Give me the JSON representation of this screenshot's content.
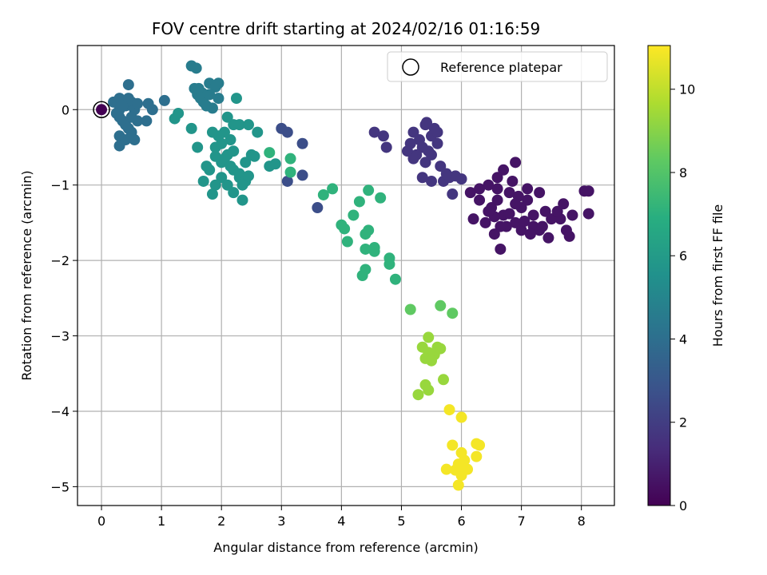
{
  "chart_data": {
    "type": "scatter",
    "title": "FOV centre drift starting at 2024/02/16 01:16:59",
    "xlabel": "Angular distance from reference (arcmin)",
    "ylabel": "Rotation from reference (arcmin)",
    "xlim": [
      -0.4,
      8.55
    ],
    "ylim": [
      -5.25,
      0.85
    ],
    "x_ticks": [
      0,
      1,
      2,
      3,
      4,
      5,
      6,
      7,
      8
    ],
    "x_tick_labels": [
      "0",
      "1",
      "2",
      "3",
      "4",
      "5",
      "6",
      "7",
      "8"
    ],
    "y_ticks": [
      0,
      -1,
      -2,
      -3,
      -4,
      -5
    ],
    "y_tick_labels": [
      "0",
      "−1",
      "−2",
      "−3",
      "−4",
      "−5"
    ],
    "grid": true,
    "colormap": "viridis",
    "colorbar": {
      "label": "Hours from first FF file",
      "range": [
        0,
        11.05
      ],
      "ticks": [
        0,
        2,
        4,
        6,
        8,
        10
      ],
      "tick_labels": [
        "0",
        "2",
        "4",
        "6",
        "8",
        "10"
      ]
    },
    "legend": {
      "position": "top-right",
      "entries": [
        {
          "label": "Reference platepar",
          "marker": "open-circle"
        }
      ]
    },
    "reference_point": {
      "x": 0,
      "y": 0
    },
    "clusters": [
      {
        "hours": 0.0,
        "points": [
          [
            0.0,
            0.0
          ]
        ]
      },
      {
        "hours": 0.6,
        "points": [
          [
            6.5,
            -1.3
          ],
          [
            6.6,
            -1.2
          ],
          [
            6.7,
            -1.4
          ],
          [
            6.8,
            -1.1
          ],
          [
            6.9,
            -1.5
          ],
          [
            7.0,
            -1.3
          ],
          [
            7.1,
            -1.2
          ],
          [
            7.2,
            -1.4
          ],
          [
            7.3,
            -1.6
          ],
          [
            7.4,
            -1.35
          ],
          [
            7.5,
            -1.45
          ],
          [
            6.4,
            -1.5
          ],
          [
            6.3,
            -1.2
          ],
          [
            6.2,
            -1.45
          ],
          [
            6.55,
            -1.65
          ],
          [
            6.65,
            -1.85
          ],
          [
            6.75,
            -1.55
          ],
          [
            7.0,
            -1.6
          ],
          [
            7.2,
            -1.55
          ],
          [
            7.45,
            -1.7
          ],
          [
            7.65,
            -1.45
          ],
          [
            7.75,
            -1.6
          ],
          [
            7.8,
            -1.68
          ],
          [
            7.6,
            -1.35
          ],
          [
            7.7,
            -1.25
          ],
          [
            7.3,
            -1.1
          ],
          [
            7.1,
            -1.05
          ],
          [
            6.95,
            -1.15
          ],
          [
            6.85,
            -0.95
          ],
          [
            6.7,
            -0.8
          ],
          [
            6.6,
            -0.9
          ],
          [
            6.45,
            -1.0
          ],
          [
            6.3,
            -1.05
          ],
          [
            6.15,
            -1.1
          ],
          [
            6.9,
            -0.7
          ],
          [
            8.05,
            -1.08
          ],
          [
            8.12,
            -1.08
          ],
          [
            8.12,
            -1.38
          ],
          [
            7.85,
            -1.4
          ],
          [
            6.55,
            -1.42
          ],
          [
            6.65,
            -1.55
          ],
          [
            6.8,
            -1.38
          ],
          [
            7.05,
            -1.48
          ],
          [
            6.6,
            -1.05
          ],
          [
            7.35,
            -1.55
          ],
          [
            7.15,
            -1.65
          ],
          [
            6.45,
            -1.35
          ],
          [
            6.9,
            -1.25
          ]
        ]
      },
      {
        "hours": 1.7,
        "points": [
          [
            5.2,
            -0.3
          ],
          [
            5.3,
            -0.4
          ],
          [
            5.4,
            -0.2
          ],
          [
            5.5,
            -0.35
          ],
          [
            5.6,
            -0.45
          ],
          [
            5.45,
            -0.55
          ],
          [
            5.35,
            -0.5
          ],
          [
            5.25,
            -0.6
          ],
          [
            5.4,
            -0.7
          ],
          [
            5.5,
            -0.6
          ],
          [
            5.6,
            -0.3
          ],
          [
            5.15,
            -0.45
          ],
          [
            5.1,
            -0.55
          ],
          [
            5.2,
            -0.65
          ],
          [
            5.55,
            -0.25
          ],
          [
            5.65,
            -0.75
          ],
          [
            5.7,
            -0.95
          ],
          [
            5.8,
            -0.9
          ],
          [
            5.9,
            -0.88
          ],
          [
            6.0,
            -0.92
          ],
          [
            5.85,
            -1.12
          ],
          [
            5.75,
            -0.85
          ],
          [
            5.5,
            -0.95
          ],
          [
            4.7,
            -0.35
          ],
          [
            4.55,
            -0.3
          ],
          [
            4.75,
            -0.5
          ],
          [
            5.42,
            -0.17
          ],
          [
            5.35,
            -0.9
          ]
        ]
      },
      {
        "hours": 2.6,
        "points": [
          [
            3.0,
            -0.25
          ],
          [
            3.1,
            -0.3
          ],
          [
            3.35,
            -0.45
          ],
          [
            3.1,
            -0.95
          ],
          [
            3.35,
            -0.87
          ],
          [
            3.6,
            -1.3
          ]
        ]
      },
      {
        "hours": 4.0,
        "points": [
          [
            0.2,
            0.1
          ],
          [
            0.3,
            0.0
          ],
          [
            0.4,
            0.05
          ],
          [
            0.5,
            0.1
          ],
          [
            0.3,
            -0.1
          ],
          [
            0.4,
            -0.2
          ],
          [
            0.5,
            -0.3
          ],
          [
            0.35,
            -0.15
          ],
          [
            0.45,
            -0.25
          ],
          [
            0.25,
            -0.05
          ],
          [
            0.55,
            0.0
          ],
          [
            0.6,
            -0.15
          ],
          [
            0.3,
            0.15
          ],
          [
            0.45,
            0.15
          ],
          [
            0.5,
            -0.1
          ],
          [
            0.3,
            -0.35
          ],
          [
            0.4,
            -0.4
          ],
          [
            0.55,
            -0.4
          ],
          [
            0.75,
            -0.15
          ],
          [
            0.85,
            0.0
          ],
          [
            0.78,
            0.08
          ],
          [
            1.05,
            0.12
          ],
          [
            0.45,
            0.33
          ],
          [
            0.3,
            -0.48
          ],
          [
            0.6,
            0.08
          ],
          [
            0.35,
            0.05
          ]
        ]
      },
      {
        "hours": 4.6,
        "points": [
          [
            1.5,
            0.58
          ],
          [
            1.58,
            0.55
          ],
          [
            1.6,
            0.2
          ],
          [
            1.65,
            0.15
          ],
          [
            1.7,
            0.1
          ],
          [
            1.8,
            0.35
          ],
          [
            1.9,
            0.3
          ],
          [
            1.95,
            0.35
          ],
          [
            1.75,
            0.05
          ],
          [
            1.85,
            0.02
          ],
          [
            1.8,
            0.2
          ],
          [
            1.95,
            0.15
          ],
          [
            1.55,
            0.28
          ],
          [
            1.68,
            0.22
          ],
          [
            1.62,
            0.28
          ]
        ]
      },
      {
        "hours": 5.7,
        "points": [
          [
            1.9,
            -0.5
          ],
          [
            2.0,
            -0.7
          ],
          [
            2.1,
            -0.6
          ],
          [
            2.2,
            -0.8
          ],
          [
            2.3,
            -0.9
          ],
          [
            2.4,
            -0.7
          ],
          [
            2.5,
            -0.6
          ],
          [
            2.0,
            -0.9
          ],
          [
            2.1,
            -1.0
          ],
          [
            2.2,
            -1.1
          ],
          [
            2.3,
            -0.85
          ],
          [
            2.4,
            -0.95
          ],
          [
            1.8,
            -0.8
          ],
          [
            1.9,
            -1.0
          ],
          [
            1.7,
            -0.95
          ],
          [
            1.75,
            -0.75
          ],
          [
            1.85,
            -1.12
          ],
          [
            2.05,
            -0.65
          ],
          [
            2.15,
            -0.4
          ],
          [
            2.2,
            -0.2
          ],
          [
            2.1,
            -0.1
          ],
          [
            2.25,
            0.15
          ],
          [
            2.3,
            -0.2
          ],
          [
            2.05,
            -0.3
          ],
          [
            1.95,
            -0.35
          ],
          [
            1.85,
            -0.3
          ],
          [
            2.45,
            -0.2
          ],
          [
            2.6,
            -0.3
          ],
          [
            2.55,
            -0.62
          ],
          [
            2.2,
            -0.55
          ],
          [
            2.35,
            -1.0
          ],
          [
            2.35,
            -1.2
          ],
          [
            1.6,
            -0.5
          ],
          [
            1.5,
            -0.25
          ],
          [
            1.22,
            -0.12
          ],
          [
            1.28,
            -0.05
          ],
          [
            2.8,
            -0.75
          ],
          [
            2.9,
            -0.72
          ],
          [
            2.0,
            -0.45
          ],
          [
            2.15,
            -0.75
          ],
          [
            2.45,
            -0.88
          ],
          [
            1.9,
            -0.62
          ]
        ]
      },
      {
        "hours": 7.1,
        "points": [
          [
            2.8,
            -0.57
          ],
          [
            3.15,
            -0.65
          ],
          [
            3.15,
            -0.83
          ],
          [
            3.7,
            -1.13
          ],
          [
            3.85,
            -1.05
          ],
          [
            4.0,
            -1.53
          ],
          [
            4.05,
            -1.58
          ],
          [
            4.1,
            -1.75
          ],
          [
            4.2,
            -1.4
          ],
          [
            4.3,
            -1.22
          ],
          [
            4.45,
            -1.07
          ],
          [
            4.65,
            -1.17
          ],
          [
            4.4,
            -1.65
          ],
          [
            4.45,
            -1.6
          ],
          [
            4.4,
            -1.85
          ],
          [
            4.55,
            -1.88
          ],
          [
            4.55,
            -1.83
          ],
          [
            4.4,
            -2.12
          ],
          [
            4.35,
            -2.2
          ],
          [
            4.8,
            -1.97
          ],
          [
            4.8,
            -2.05
          ],
          [
            4.9,
            -2.25
          ]
        ]
      },
      {
        "hours": 8.3,
        "points": [
          [
            5.15,
            -2.65
          ],
          [
            5.65,
            -2.6
          ],
          [
            5.85,
            -2.7
          ]
        ]
      },
      {
        "hours": 9.3,
        "points": [
          [
            5.45,
            -3.02
          ],
          [
            5.35,
            -3.15
          ],
          [
            5.45,
            -3.22
          ],
          [
            5.55,
            -3.25
          ],
          [
            5.4,
            -3.3
          ],
          [
            5.5,
            -3.33
          ],
          [
            5.6,
            -3.15
          ],
          [
            5.65,
            -3.17
          ],
          [
            5.7,
            -3.58
          ],
          [
            5.4,
            -3.65
          ],
          [
            5.45,
            -3.72
          ],
          [
            5.28,
            -3.78
          ]
        ]
      },
      {
        "hours": 10.9,
        "points": [
          [
            5.8,
            -3.98
          ],
          [
            6.0,
            -4.08
          ],
          [
            5.85,
            -4.45
          ],
          [
            6.0,
            -4.55
          ],
          [
            6.05,
            -4.65
          ],
          [
            6.25,
            -4.43
          ],
          [
            6.3,
            -4.45
          ],
          [
            6.25,
            -4.6
          ],
          [
            5.95,
            -4.7
          ],
          [
            6.05,
            -4.75
          ],
          [
            6.1,
            -4.77
          ],
          [
            5.75,
            -4.77
          ],
          [
            5.9,
            -4.78
          ],
          [
            6.0,
            -4.85
          ],
          [
            6.05,
            -4.75
          ],
          [
            5.95,
            -4.98
          ],
          [
            6.0,
            -4.75
          ]
        ]
      }
    ]
  }
}
